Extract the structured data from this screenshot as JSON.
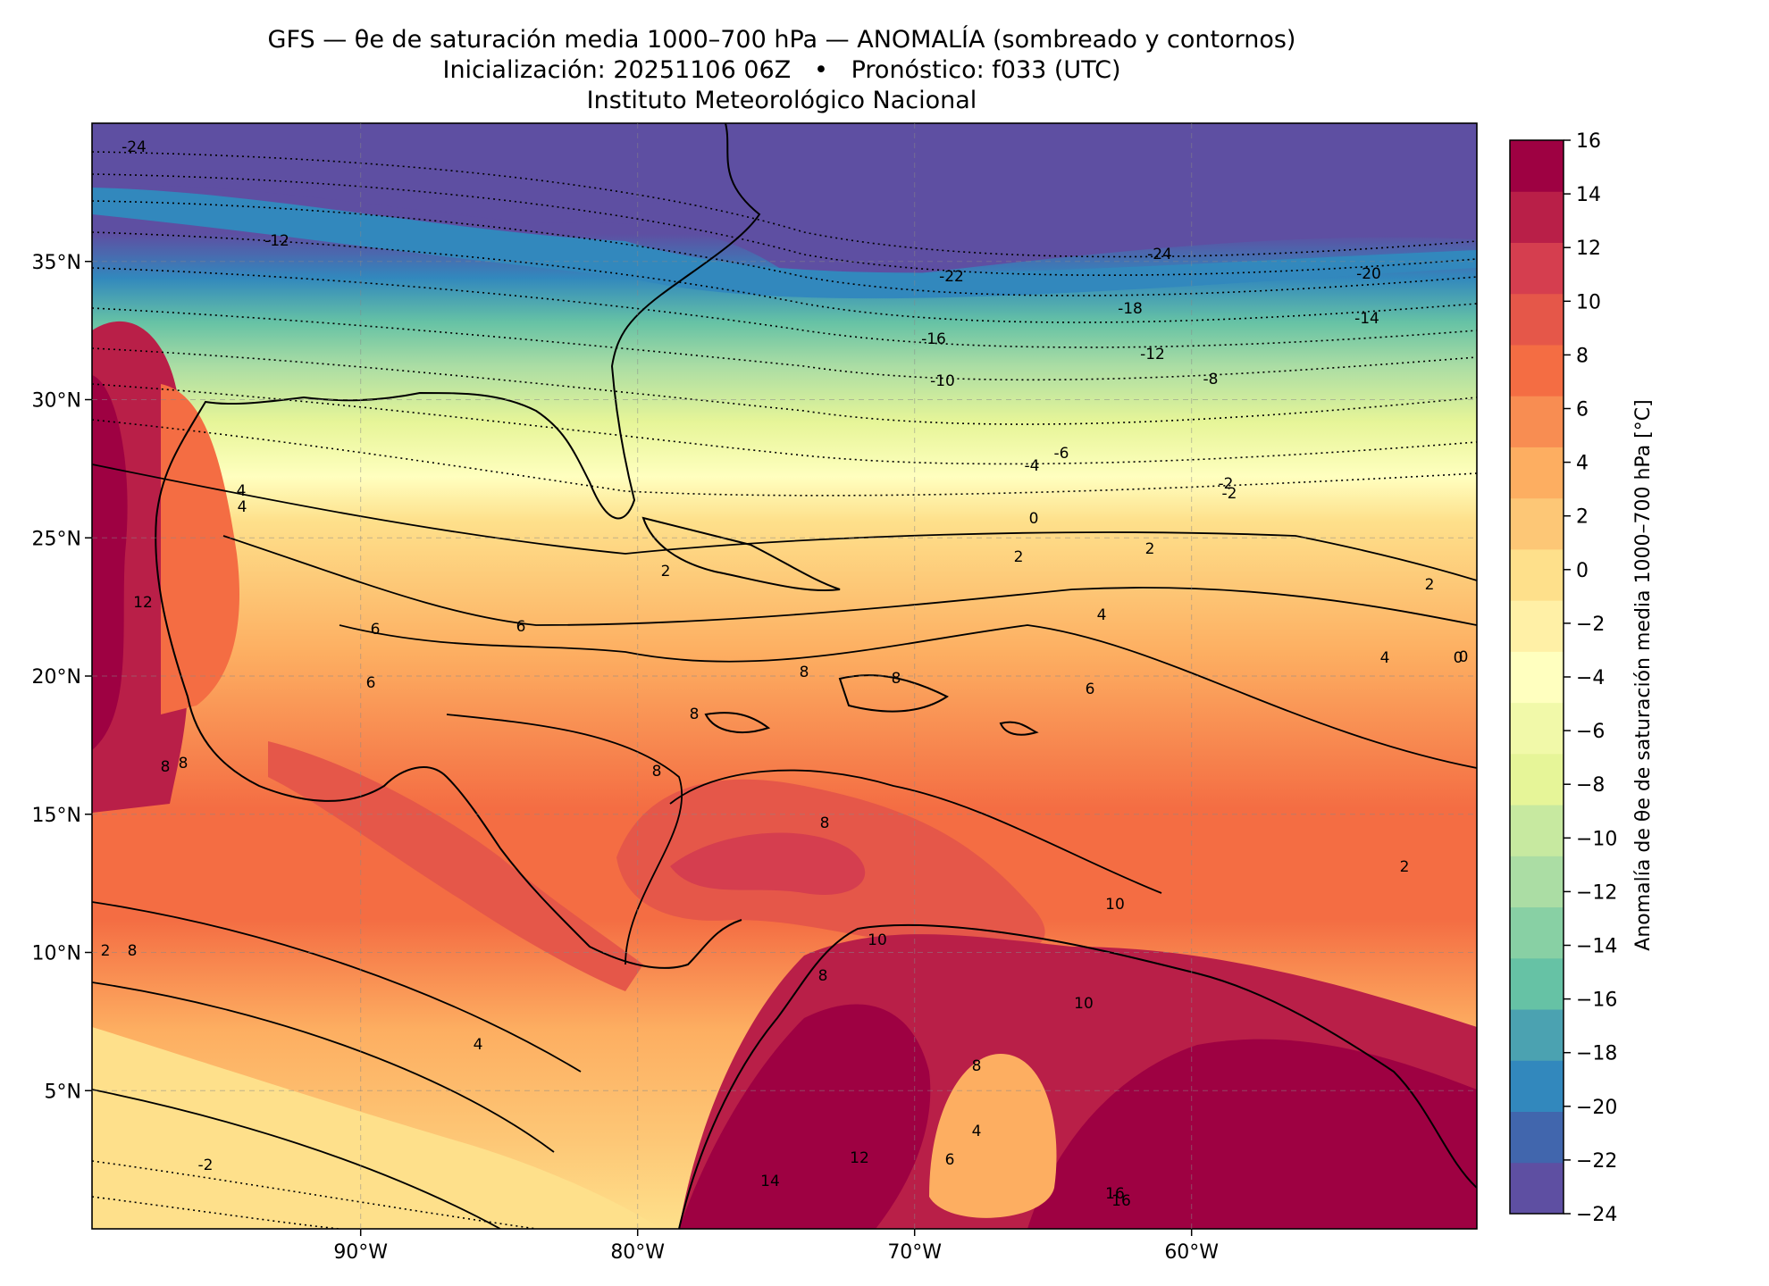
{
  "title": {
    "line1": "GFS — θe de saturación media 1000–700 hPa — ANOMALÍA (sombreado y contornos)",
    "line2": "Inicialización: 20251106 06Z   •   Pronóstico: f033 (UTC)",
    "line3": "Instituto Meteorológico Nacional"
  },
  "axes": {
    "lon_ticks": [
      "90°W",
      "80°W",
      "70°W",
      "60°W"
    ],
    "lat_ticks": [
      "35°N",
      "30°N",
      "25°N",
      "20°N",
      "15°N",
      "10°N",
      "5°N"
    ],
    "lon_range": [
      -99.7,
      -49.7
    ],
    "lat_range": [
      0,
      40
    ],
    "grid": true
  },
  "colorbar": {
    "label": "Anomalía de θe de saturación media 1000–700 hPa [°C]",
    "ticks": [
      "16",
      "14",
      "12",
      "10",
      "8",
      "6",
      "4",
      "2",
      "0",
      "−2",
      "−4",
      "−6",
      "−8",
      "−10",
      "−12",
      "−14",
      "−16",
      "−18",
      "−20",
      "−22",
      "−24"
    ],
    "range": [
      -24,
      16
    ],
    "colors": [
      "#5e4fa2",
      "#4166ad",
      "#3288bd",
      "#4ba2b1",
      "#66c2a5",
      "#88d0a4",
      "#abdda4",
      "#c7e9a0",
      "#e6f598",
      "#f1f9a9",
      "#ffffbf",
      "#fff0a6",
      "#fee08b",
      "#fdc776",
      "#fdae61",
      "#f88d52",
      "#f46d43",
      "#e55749",
      "#d53e4f",
      "#b91f48",
      "#9e0142"
    ]
  },
  "contour_labels": [
    "-24",
    "-22",
    "-20",
    "-24",
    "-18",
    "-16",
    "-14",
    "-12",
    "-10",
    "-12",
    "-8",
    "-6",
    "-4",
    "-2",
    "0",
    "2",
    "2",
    "4",
    "4",
    "4",
    "2",
    "0",
    "2",
    "6",
    "6",
    "6",
    "8",
    "8",
    "8",
    "8",
    "8",
    "8",
    "10",
    "8",
    "10",
    "12",
    "14",
    "16",
    "10",
    "8",
    "6",
    "4",
    "2",
    "0",
    "-2",
    "-2",
    "16",
    "12",
    "8",
    "4",
    "8",
    "2",
    "4",
    "6"
  ]
}
